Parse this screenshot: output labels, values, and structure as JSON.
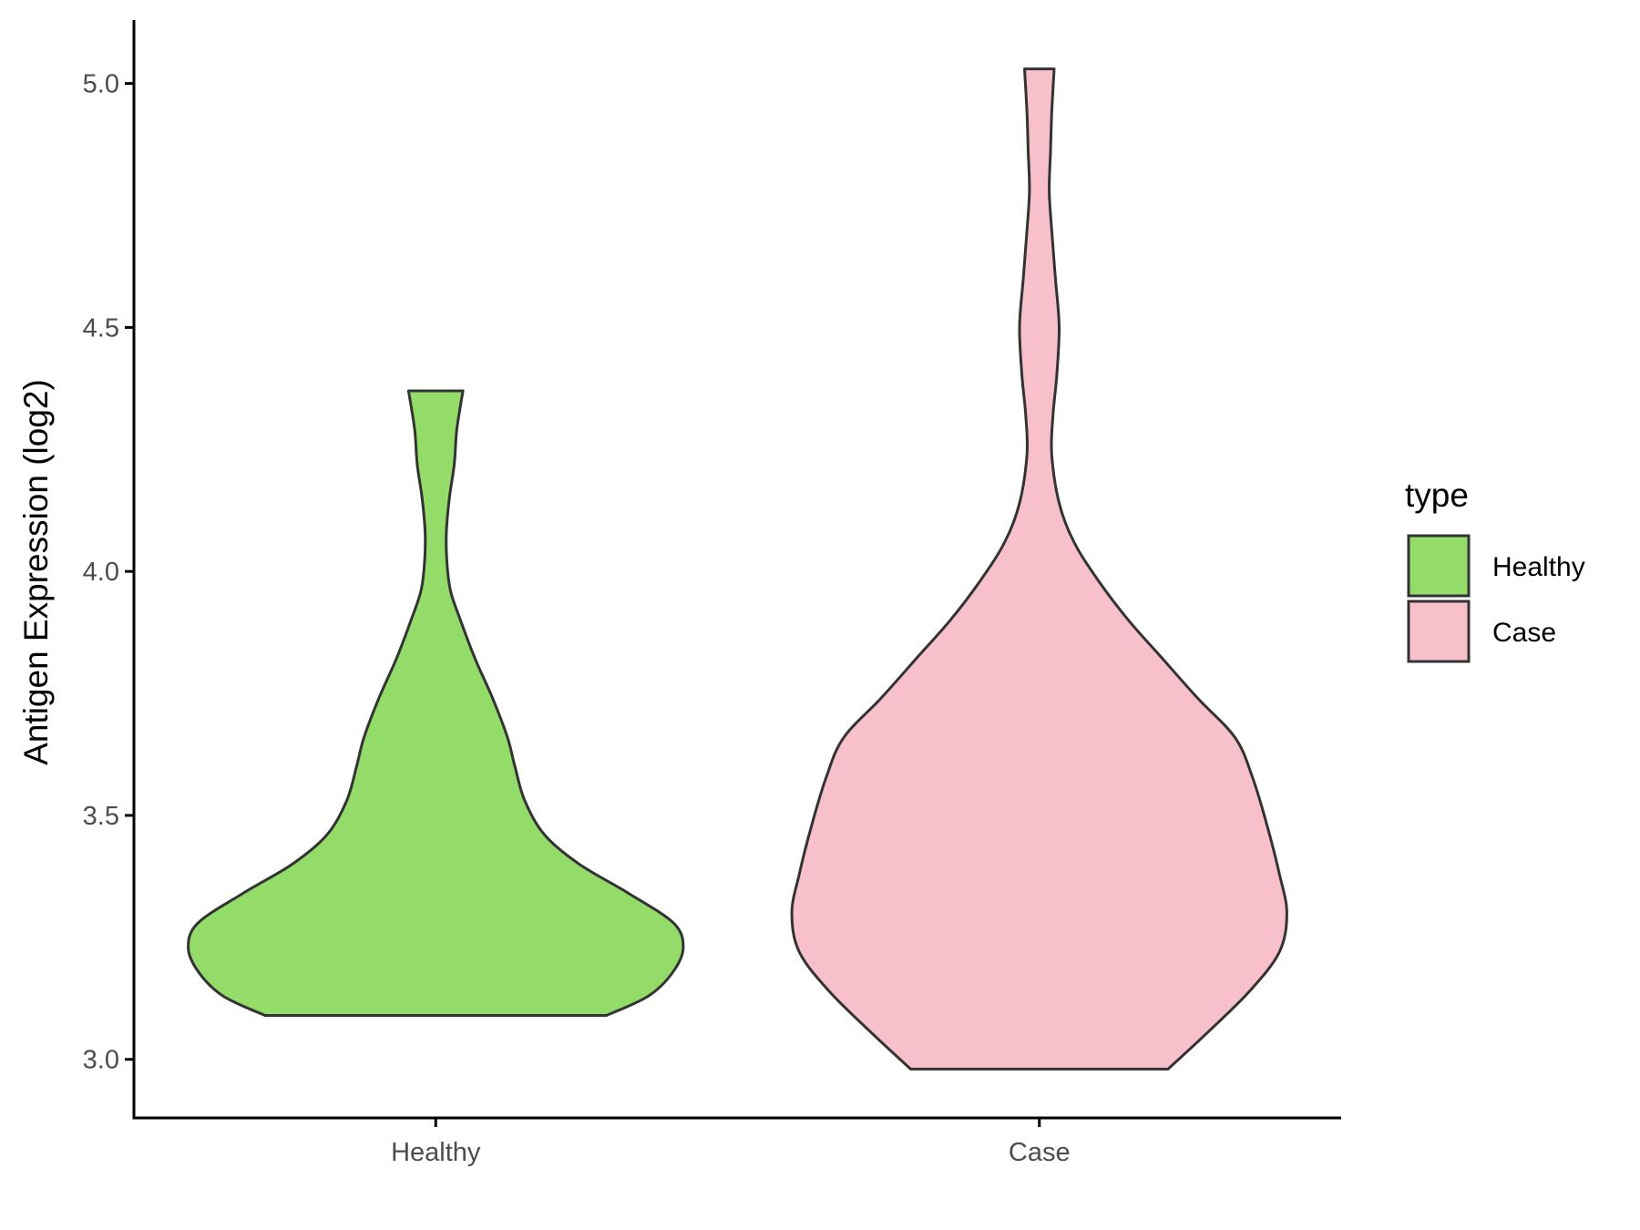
{
  "chart_data": {
    "type": "violin",
    "title": "",
    "xlabel": "",
    "ylabel": "Antigen Expression (log2)",
    "ylim": [
      2.88,
      5.13
    ],
    "yticks": [
      "3.0",
      "3.5",
      "4.0",
      "4.5",
      "5.0"
    ],
    "categories": [
      "Healthy",
      "Case"
    ],
    "colors": {
      "Healthy": "#93dc6a",
      "Case": "#f8c0cb",
      "outline": "#333333",
      "axis": "#000000"
    },
    "legend": {
      "title": "type",
      "position": "right",
      "entries": [
        "Healthy",
        "Case"
      ]
    },
    "grid": false,
    "series": [
      {
        "name": "Healthy",
        "min": 3.09,
        "max": 4.37,
        "density_profile": [
          [
            3.09,
            0.69
          ],
          [
            3.13,
            0.86
          ],
          [
            3.18,
            0.96
          ],
          [
            3.23,
            1.0
          ],
          [
            3.28,
            0.96
          ],
          [
            3.34,
            0.78
          ],
          [
            3.4,
            0.58
          ],
          [
            3.46,
            0.44
          ],
          [
            3.53,
            0.36
          ],
          [
            3.6,
            0.32
          ],
          [
            3.66,
            0.29
          ],
          [
            3.74,
            0.23
          ],
          [
            3.82,
            0.16
          ],
          [
            3.9,
            0.1
          ],
          [
            3.96,
            0.06
          ],
          [
            4.02,
            0.045
          ],
          [
            4.08,
            0.043
          ],
          [
            4.15,
            0.055
          ],
          [
            4.22,
            0.075
          ],
          [
            4.29,
            0.085
          ],
          [
            4.37,
            0.11
          ]
        ]
      },
      {
        "name": "Case",
        "min": 2.98,
        "max": 5.03,
        "density_profile": [
          [
            2.98,
            0.52
          ],
          [
            3.06,
            0.69
          ],
          [
            3.14,
            0.85
          ],
          [
            3.22,
            0.97
          ],
          [
            3.3,
            1.0
          ],
          [
            3.38,
            0.97
          ],
          [
            3.48,
            0.92
          ],
          [
            3.58,
            0.86
          ],
          [
            3.66,
            0.79
          ],
          [
            3.74,
            0.64
          ],
          [
            3.82,
            0.5
          ],
          [
            3.9,
            0.36
          ],
          [
            3.98,
            0.24
          ],
          [
            4.06,
            0.14
          ],
          [
            4.14,
            0.08
          ],
          [
            4.24,
            0.05
          ],
          [
            4.32,
            0.055
          ],
          [
            4.4,
            0.07
          ],
          [
            4.5,
            0.08
          ],
          [
            4.6,
            0.065
          ],
          [
            4.7,
            0.05
          ],
          [
            4.78,
            0.04
          ],
          [
            4.86,
            0.045
          ],
          [
            4.94,
            0.05
          ],
          [
            5.03,
            0.06
          ]
        ]
      }
    ]
  }
}
